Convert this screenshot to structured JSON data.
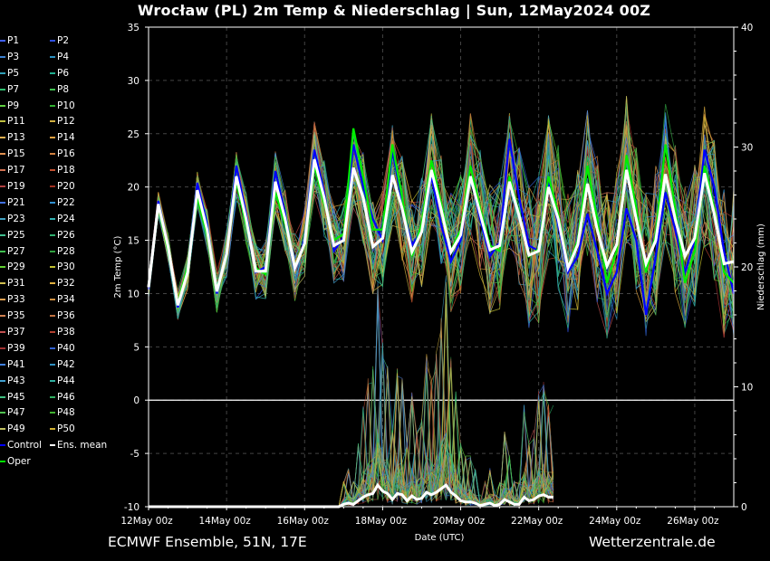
{
  "header": {
    "title": "Wrocław  (PL)  2m Temp & Niederschlag | Sun, 12May2024 00Z"
  },
  "footer": {
    "left": "ECMWF Ensemble, 51N, 17E",
    "right": "Wetterzentrale.de"
  },
  "legend": {
    "items": [
      {
        "label": "P1",
        "color": "#4060ff"
      },
      {
        "label": "P2",
        "color": "#3050e0"
      },
      {
        "label": "P3",
        "color": "#3a80d0"
      },
      {
        "label": "P4",
        "color": "#2a90c0"
      },
      {
        "label": "P5",
        "color": "#30a0b8"
      },
      {
        "label": "P6",
        "color": "#20b090"
      },
      {
        "label": "P7",
        "color": "#30c070"
      },
      {
        "label": "P8",
        "color": "#40c050"
      },
      {
        "label": "P9",
        "color": "#60d040"
      },
      {
        "label": "P10",
        "color": "#30b030"
      },
      {
        "label": "P11",
        "color": "#c0c040"
      },
      {
        "label": "P12",
        "color": "#d0b040"
      },
      {
        "label": "P13",
        "color": "#e0b050"
      },
      {
        "label": "P14",
        "color": "#e0a040"
      },
      {
        "label": "P15",
        "color": "#e09050"
      },
      {
        "label": "P16",
        "color": "#d08040"
      },
      {
        "label": "P17",
        "color": "#d07050"
      },
      {
        "label": "P18",
        "color": "#c05030"
      },
      {
        "label": "P19",
        "color": "#b04040"
      },
      {
        "label": "P20",
        "color": "#a03020"
      },
      {
        "label": "P21",
        "color": "#4070e0"
      },
      {
        "label": "P22",
        "color": "#3090d0"
      },
      {
        "label": "P23",
        "color": "#40a0c0"
      },
      {
        "label": "P24",
        "color": "#30b0b0"
      },
      {
        "label": "P25",
        "color": "#40c090"
      },
      {
        "label": "P26",
        "color": "#30b070"
      },
      {
        "label": "P27",
        "color": "#40c050"
      },
      {
        "label": "P28",
        "color": "#30a040"
      },
      {
        "label": "P29",
        "color": "#60d030"
      },
      {
        "label": "P30",
        "color": "#c0c030"
      },
      {
        "label": "P31",
        "color": "#d0c050"
      },
      {
        "label": "P32",
        "color": "#e0b040"
      },
      {
        "label": "P33",
        "color": "#e0a050"
      },
      {
        "label": "P34",
        "color": "#d09040"
      },
      {
        "label": "P35",
        "color": "#d08050"
      },
      {
        "label": "P36",
        "color": "#c07040"
      },
      {
        "label": "P37",
        "color": "#c05050"
      },
      {
        "label": "P38",
        "color": "#b04030"
      },
      {
        "label": "P39",
        "color": "#a03030"
      },
      {
        "label": "P40",
        "color": "#3060d0"
      },
      {
        "label": "P41",
        "color": "#4080e0"
      },
      {
        "label": "P42",
        "color": "#3090c0"
      },
      {
        "label": "P43",
        "color": "#40a0d0"
      },
      {
        "label": "P44",
        "color": "#30b0a0"
      },
      {
        "label": "P45",
        "color": "#40c080"
      },
      {
        "label": "P46",
        "color": "#30b060"
      },
      {
        "label": "P47",
        "color": "#50c050"
      },
      {
        "label": "P48",
        "color": "#40b030"
      },
      {
        "label": "P49",
        "color": "#c0c060"
      },
      {
        "label": "P50",
        "color": "#d0b030"
      },
      {
        "label": "Control",
        "color": "#0000ff"
      },
      {
        "label": "Ens. mean",
        "color": "#ffffff"
      },
      {
        "label": "Oper",
        "color": "#00ee00"
      }
    ]
  },
  "chart_data": {
    "type": "line",
    "x_tick_labels": [
      "12May 00z",
      "14May 00z",
      "16May 00z",
      "18May 00z",
      "20May 00z",
      "22May 00z",
      "24May 00z",
      "26May 00z"
    ],
    "xlabel": "Date (UTC)",
    "ylabel_left": "2m Temp (°C)",
    "ylabel_right": "Niederschlag (mm)",
    "ylim_left": [
      -10,
      35
    ],
    "yticks_left": [
      35,
      30,
      25,
      20,
      15,
      10,
      5,
      0,
      -5,
      -10
    ],
    "ylim_right": [
      0,
      40
    ],
    "yticks_right": [
      40,
      30,
      20,
      10,
      0
    ],
    "x_hours_max": 360,
    "step_hours": 6,
    "grid": true,
    "temp_series": [
      {
        "name": "Ens. mean",
        "color": "#ffffff",
        "values": [
          10.6,
          18.4,
          14.4,
          8.9,
          12.0,
          19.7,
          16.0,
          10.2,
          13.7,
          21.0,
          17.0,
          12.1,
          12.1,
          20.5,
          17.0,
          12.4,
          14.7,
          22.6,
          19.0,
          14.5,
          15.0,
          21.8,
          19.0,
          14.4,
          15.2,
          21.1,
          18.0,
          13.9,
          15.8,
          21.6,
          17.9,
          13.9,
          15.5,
          21.0,
          17.5,
          14.1,
          14.5,
          20.5,
          17.3,
          13.6,
          14.0,
          20.0,
          17.0,
          12.4,
          14.6,
          20.3,
          16.0,
          12.6,
          14.6,
          21.6,
          17.0,
          12.8,
          15.0,
          21.2,
          17.0,
          13.5,
          15.2,
          21.3,
          17.5,
          12.8,
          13.0
        ]
      },
      {
        "name": "Control",
        "color": "#0000ff",
        "values": [
          10.4,
          18.7,
          14.6,
          8.7,
          12.2,
          20.4,
          16.5,
          10.0,
          13.9,
          22.0,
          17.5,
          12.0,
          12.5,
          21.5,
          17.5,
          12.2,
          15.0,
          23.5,
          19.5,
          14.0,
          15.3,
          24.0,
          20.0,
          17.0,
          15.0,
          23.5,
          18.5,
          14.5,
          16.0,
          21.0,
          16.5,
          13.0,
          15.0,
          21.0,
          17.0,
          13.5,
          14.8,
          24.5,
          19.0,
          14.5,
          14.0,
          20.5,
          16.5,
          12.0,
          13.5,
          17.5,
          14.0,
          10.0,
          12.0,
          18.0,
          15.0,
          8.0,
          13.5,
          19.5,
          16.0,
          12.0,
          15.0,
          23.5,
          20.0,
          14.0,
          10.0
        ]
      },
      {
        "name": "Oper",
        "color": "#00ee00",
        "values": [
          10.8,
          18.2,
          14.0,
          9.1,
          12.5,
          19.0,
          15.5,
          10.5,
          13.5,
          20.5,
          16.5,
          12.4,
          11.8,
          19.5,
          16.5,
          12.6,
          14.5,
          22.0,
          18.5,
          15.0,
          15.6,
          25.5,
          21.0,
          16.0,
          16.0,
          24.0,
          19.0,
          13.5,
          16.5,
          22.5,
          18.5,
          14.0,
          16.0,
          22.0,
          18.0,
          14.5,
          14.0,
          21.0,
          17.5,
          13.5,
          14.2,
          21.0,
          17.5,
          12.5,
          15.0,
          22.0,
          17.0,
          11.0,
          14.0,
          23.0,
          18.0,
          12.0,
          15.5,
          24.0,
          18.0,
          11.0,
          14.0,
          22.0,
          18.0,
          12.0,
          11.0
        ]
      }
    ],
    "precip_series": [
      {
        "name": "Ens. mean",
        "color": "#ffffff",
        "values": [
          0,
          0,
          0,
          0,
          0,
          0,
          0,
          0,
          0,
          0,
          0,
          0,
          0,
          0,
          0,
          0,
          0,
          0,
          0,
          0,
          0,
          0,
          0,
          0,
          0,
          0,
          0,
          0,
          0,
          0,
          0,
          0,
          0,
          0,
          0,
          0,
          0,
          0,
          0,
          0,
          0.2,
          0.3,
          0.2,
          0.5,
          0.8,
          1.0,
          1.1,
          1.8,
          1.3,
          1.1,
          0.6,
          1.1,
          1.0,
          0.5,
          0.9,
          0.6,
          0.7,
          1.2,
          1.0,
          1.2,
          1.5,
          1.8,
          1.2,
          0.9,
          0.5,
          0.4,
          0.4,
          0.3,
          0.1,
          0.2,
          0.3,
          0.1,
          0.2,
          0.6,
          0.4,
          0.2,
          0.2,
          0.8,
          0.5,
          0.6,
          0.9,
          1.0,
          0.8,
          0.8
        ]
      }
    ],
    "precip_step_hours": 3
  }
}
